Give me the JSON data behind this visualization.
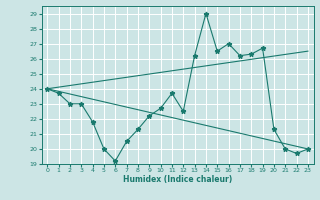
{
  "xlabel": "Humidex (Indice chaleur)",
  "xlim": [
    -0.5,
    23.5
  ],
  "ylim": [
    19,
    29.5
  ],
  "yticks": [
    19,
    20,
    21,
    22,
    23,
    24,
    25,
    26,
    27,
    28,
    29
  ],
  "xticks": [
    0,
    1,
    2,
    3,
    4,
    5,
    6,
    7,
    8,
    9,
    10,
    11,
    12,
    13,
    14,
    15,
    16,
    17,
    18,
    19,
    20,
    21,
    22,
    23
  ],
  "bg_color": "#cce5e5",
  "grid_color": "#ffffff",
  "line_color": "#1a7a6e",
  "series_jagged": {
    "x": [
      0,
      1,
      2,
      3,
      4,
      5,
      6,
      7,
      8,
      9,
      10,
      11,
      12,
      13,
      14,
      15,
      16,
      17,
      18,
      19,
      20,
      21,
      22,
      23
    ],
    "y": [
      24,
      23.7,
      23,
      23,
      21.8,
      20,
      19.2,
      20.5,
      21.3,
      22.2,
      22.7,
      23.7,
      22.5,
      26.2,
      29,
      26.5,
      27,
      26.2,
      26.3,
      26.7,
      21.3,
      20,
      19.7,
      20
    ]
  },
  "series_upper": {
    "x": [
      0,
      23
    ],
    "y": [
      24,
      26.5
    ]
  },
  "series_lower": {
    "x": [
      0,
      23
    ],
    "y": [
      24,
      20
    ]
  }
}
